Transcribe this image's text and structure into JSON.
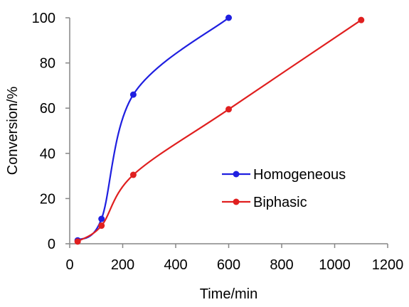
{
  "chart_data": {
    "type": "line",
    "title": "",
    "xlabel": "Time/min",
    "ylabel": "Conversion/%",
    "xlim": [
      0,
      1200
    ],
    "ylim": [
      0,
      100
    ],
    "x_ticks": [
      0,
      200,
      400,
      600,
      800,
      1000,
      1200
    ],
    "y_ticks": [
      0,
      20,
      40,
      60,
      80,
      100
    ],
    "x_tick_labels": [
      "0",
      "200",
      "400",
      "600",
      "800",
      "1000",
      "1200"
    ],
    "y_tick_labels": [
      "0",
      "20",
      "40",
      "60",
      "80",
      "100"
    ],
    "grid": false,
    "smooth": true,
    "legend_position": "center-right",
    "series": [
      {
        "name": "Homogeneous",
        "color": "#1f1fe0",
        "x": [
          30,
          120,
          240,
          600
        ],
        "y": [
          1.5,
          11,
          66,
          100
        ]
      },
      {
        "name": "Biphasic",
        "color": "#e01f1f",
        "x": [
          30,
          120,
          240,
          600,
          1100
        ],
        "y": [
          1,
          8,
          30.5,
          59.5,
          99
        ]
      }
    ]
  }
}
